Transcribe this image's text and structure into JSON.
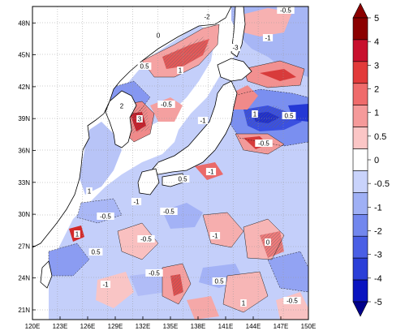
{
  "map": {
    "lon_labels": [
      "120E",
      "123E",
      "126E",
      "129E",
      "132E",
      "135E",
      "138E",
      "141E",
      "144E",
      "147E",
      "150E"
    ],
    "lat_labels": [
      "21N",
      "24N",
      "27N",
      "30N",
      "33N",
      "36N",
      "39N",
      "42N",
      "45N",
      "48N"
    ],
    "contour_labels": [
      "-0.5",
      "-1",
      "-2",
      "-3",
      "0",
      "0.5",
      "1",
      "2",
      "3",
      "-0.5",
      "-1",
      "1",
      "0.5",
      "-0.5",
      "-1",
      "0.5",
      "1",
      "-0.5",
      "-1",
      "-0.5",
      "1",
      "0.5",
      "-0.5",
      "-1",
      "0",
      "-0.5",
      "-1",
      "0.5",
      "1",
      "-0.5"
    ]
  },
  "colorbar": {
    "labels": [
      "5",
      "4",
      "3",
      "2",
      "1",
      "0.5",
      "0",
      "-0.5",
      "-1",
      "-2",
      "-3",
      "-4",
      "-5"
    ],
    "colors": [
      "#8b0000",
      "#c8102e",
      "#e23a3a",
      "#ef6b6b",
      "#f59a9a",
      "#fbc6c6",
      "#ffffff",
      "#c9d3fb",
      "#9fb0f5",
      "#7287ee",
      "#4a5fe5",
      "#2b3fd8",
      "#0a14c0"
    ]
  }
}
